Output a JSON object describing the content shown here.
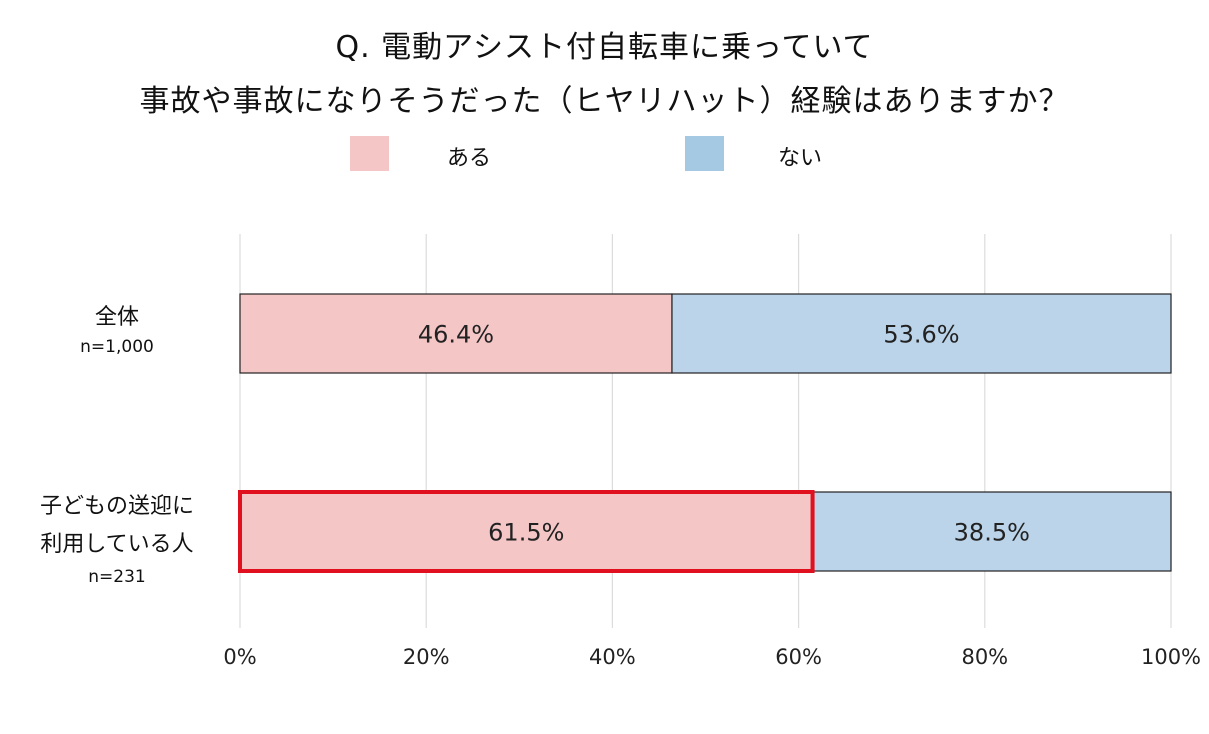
{
  "chart_data": {
    "type": "bar",
    "orientation": "horizontal",
    "stacked": true,
    "title": [
      "Q. 電動アシスト付自転車に乗っていて",
      "事故や事故になりそうだった（ヒヤリハット）経験はありますか？"
    ],
    "legend": {
      "placement": "top"
    },
    "categories": [
      {
        "lines": [
          "全体"
        ],
        "n": "n=1,000"
      },
      {
        "lines": [
          "子どもの送迎に",
          "利用している人"
        ],
        "n": "n=231"
      }
    ],
    "series": [
      {
        "name": "ある",
        "color": "#f5c6c6",
        "values": [
          46.4,
          61.5
        ],
        "labels": [
          "46.4%",
          "61.5%"
        ]
      },
      {
        "name": "ない",
        "color": "#bcd4ea",
        "values": [
          53.6,
          38.5
        ],
        "labels": [
          "53.6%",
          "38.5%"
        ]
      }
    ],
    "legend_colors": [
      "#f5c6c6",
      "#a6c9e3"
    ],
    "highlight": {
      "category_index": 1,
      "series_index": 0,
      "color": "#e0101e"
    },
    "xlim": [
      0,
      100
    ],
    "xticks": [
      "0%",
      "20%",
      "40%",
      "60%",
      "80%",
      "100%"
    ],
    "grid": true
  }
}
